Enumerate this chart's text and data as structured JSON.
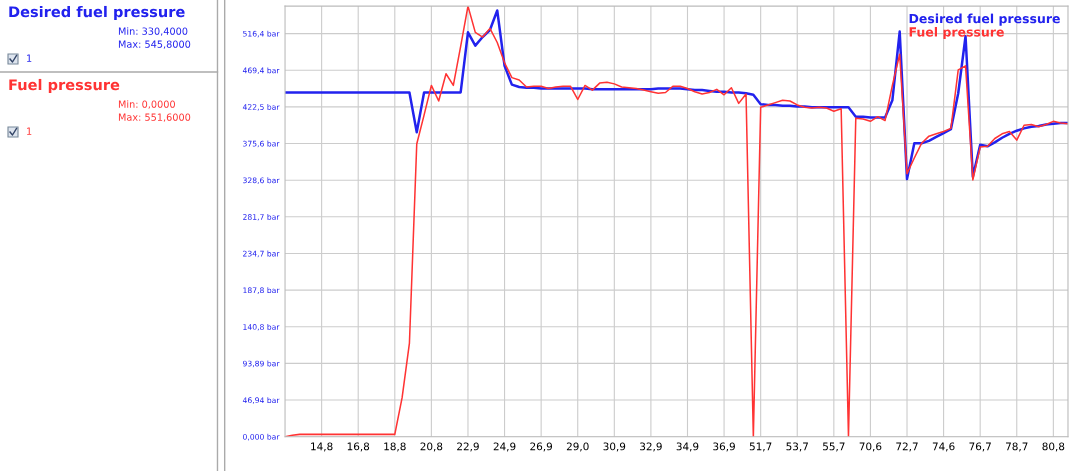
{
  "chart_data": {
    "type": "line",
    "annotations": [
      "Desired fuel pressure",
      "Min: 330,4000",
      "Max: 545,8000",
      "1",
      "Fuel pressure",
      "Min: 0,0000",
      "Max: 551,6000",
      "1"
    ],
    "categories": [
      null,
      null,
      null,
      null,
      null,
      "14,8",
      null,
      null,
      null,
      null,
      "16,8",
      null,
      null,
      null,
      null,
      "18,8",
      null,
      null,
      null,
      null,
      "20,8",
      null,
      null,
      null,
      null,
      "22,9",
      null,
      null,
      null,
      null,
      "24,9",
      null,
      null,
      null,
      null,
      "26,9",
      null,
      null,
      null,
      null,
      "29,0",
      null,
      null,
      null,
      null,
      "30,9",
      null,
      null,
      null,
      null,
      "32,9",
      null,
      null,
      null,
      null,
      "34,9",
      null,
      null,
      null,
      null,
      "36,9",
      null,
      null,
      null,
      null,
      "51,7",
      null,
      null,
      null,
      null,
      "53,7",
      null,
      null,
      null,
      null,
      "55,7",
      null,
      null,
      null,
      null,
      "70,6",
      null,
      null,
      null,
      null,
      "72,7",
      null,
      null,
      null,
      null,
      "74,6",
      null,
      null,
      null,
      null,
      "76,7",
      null,
      null,
      null,
      null,
      "78,7",
      null,
      null,
      null,
      null,
      "80,8",
      null,
      null
    ],
    "series": [
      {
        "name": "Desired fuel pressure",
        "color": "#2222ee",
        "values": [
          441,
          441,
          441,
          441,
          441,
          441,
          441,
          441,
          441,
          441,
          441,
          441,
          441,
          441,
          441,
          441,
          441,
          441,
          390,
          441,
          441,
          441,
          441,
          441,
          441,
          518,
          501,
          512,
          521,
          546,
          475,
          451,
          448,
          447,
          447,
          446,
          446,
          446,
          446,
          446,
          446,
          446,
          445,
          445,
          445,
          445,
          445,
          445,
          445,
          445,
          445,
          446,
          446,
          446,
          446,
          445,
          444,
          444,
          443,
          442,
          442,
          441,
          441,
          440,
          438,
          426,
          425,
          425,
          424,
          424,
          423,
          423,
          422,
          422,
          422,
          422,
          422,
          422,
          410,
          410,
          409,
          409,
          409,
          431,
          519,
          330,
          376,
          376,
          379,
          384,
          389,
          394,
          440,
          513,
          333,
          374,
          372,
          377,
          383,
          388,
          392,
          395,
          397,
          398,
          400,
          401,
          402,
          402
        ]
      },
      {
        "name": "Fuel pressure",
        "color": "#ff3333",
        "values": [
          0,
          2,
          3,
          3,
          3,
          3,
          3,
          3,
          3,
          3,
          3,
          3,
          3,
          3,
          3,
          3,
          50,
          120,
          375,
          412,
          450,
          430,
          465,
          450,
          500,
          551.6,
          518,
          512,
          523,
          505,
          479,
          460,
          457,
          448,
          449,
          449,
          446,
          448,
          449,
          449,
          432,
          450,
          444,
          453,
          454,
          452,
          448,
          447,
          446,
          444,
          442,
          440,
          441,
          449,
          449,
          446,
          442,
          439,
          441,
          445,
          438,
          447,
          427,
          439,
          0,
          422,
          425,
          428,
          431,
          430,
          425,
          422,
          421,
          422,
          421,
          417,
          420,
          0,
          408,
          407,
          404,
          410,
          405,
          450,
          490,
          337,
          357,
          376,
          385,
          388,
          391,
          395,
          470,
          475,
          329,
          371,
          372,
          382,
          388,
          391,
          380,
          399,
          400,
          397,
          400,
          404,
          402,
          401
        ]
      }
    ],
    "ylim": [
      0,
      551.6
    ],
    "yticks": [
      {
        "value": 0,
        "label": "0,000 bar"
      },
      {
        "value": 46.94,
        "label": "46,94 bar"
      },
      {
        "value": 93.89,
        "label": "93,89 bar"
      },
      {
        "value": 140.8,
        "label": "140,8 bar"
      },
      {
        "value": 187.8,
        "label": "187,8 bar"
      },
      {
        "value": 234.7,
        "label": "234,7 bar"
      },
      {
        "value": 281.7,
        "label": "281,7 bar"
      },
      {
        "value": 328.6,
        "label": "328,6 bar"
      },
      {
        "value": 375.6,
        "label": "375,6 bar"
      },
      {
        "value": 422.5,
        "label": "422,5 bar"
      },
      {
        "value": 469.4,
        "label": "469,4 bar"
      },
      {
        "value": 516.4,
        "label": "516,4 bar"
      }
    ],
    "grid": true,
    "legend": "top right",
    "marker": "none",
    "line_style": "solid"
  }
}
